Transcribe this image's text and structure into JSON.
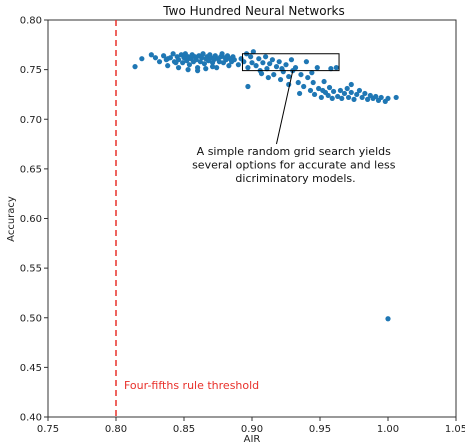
{
  "chart_data": {
    "type": "scatter",
    "title": "Two Hundred Neural Networks",
    "xlabel": "AIR",
    "ylabel": "Accuracy",
    "xlim": [
      0.75,
      1.05
    ],
    "ylim": [
      0.4,
      0.8
    ],
    "xticks": [
      "0.75",
      "0.80",
      "0.85",
      "0.90",
      "0.95",
      "1.00",
      "1.05"
    ],
    "yticks": [
      "0.40",
      "0.45",
      "0.50",
      "0.55",
      "0.60",
      "0.65",
      "0.70",
      "0.75",
      "0.80"
    ],
    "grid": false,
    "marker_color": "#1f77b4",
    "threshold": {
      "x": 0.8,
      "label": "Four-fifths rule threshold",
      "color": "#e8302a",
      "style": "dashed"
    },
    "annotation": {
      "lines": [
        "A simple random grid search yields",
        "several options for accurate and less",
        "dicriminatory models."
      ],
      "box": {
        "x0": 0.893,
        "x1": 0.964,
        "y0": 0.749,
        "y1": 0.766
      },
      "arrow_to": [
        0.93,
        0.749
      ]
    },
    "points": [
      [
        0.814,
        0.753
      ],
      [
        0.819,
        0.761
      ],
      [
        0.826,
        0.765
      ],
      [
        0.829,
        0.762
      ],
      [
        0.832,
        0.758
      ],
      [
        0.835,
        0.764
      ],
      [
        0.837,
        0.76
      ],
      [
        0.838,
        0.754
      ],
      [
        0.84,
        0.762
      ],
      [
        0.842,
        0.766
      ],
      [
        0.843,
        0.758
      ],
      [
        0.845,
        0.763
      ],
      [
        0.846,
        0.76
      ],
      [
        0.848,
        0.765
      ],
      [
        0.849,
        0.757
      ],
      [
        0.85,
        0.762
      ],
      [
        0.851,
        0.766
      ],
      [
        0.852,
        0.759
      ],
      [
        0.853,
        0.763
      ],
      [
        0.854,
        0.755
      ],
      [
        0.855,
        0.761
      ],
      [
        0.856,
        0.765
      ],
      [
        0.857,
        0.758
      ],
      [
        0.858,
        0.763
      ],
      [
        0.859,
        0.76
      ],
      [
        0.86,
        0.752
      ],
      [
        0.861,
        0.764
      ],
      [
        0.862,
        0.758
      ],
      [
        0.863,
        0.762
      ],
      [
        0.864,
        0.766
      ],
      [
        0.865,
        0.756
      ],
      [
        0.866,
        0.761
      ],
      [
        0.867,
        0.763
      ],
      [
        0.868,
        0.759
      ],
      [
        0.869,
        0.765
      ],
      [
        0.87,
        0.762
      ],
      [
        0.871,
        0.757
      ],
      [
        0.872,
        0.76
      ],
      [
        0.873,
        0.764
      ],
      [
        0.874,
        0.752
      ],
      [
        0.875,
        0.761
      ],
      [
        0.876,
        0.758
      ],
      [
        0.877,
        0.763
      ],
      [
        0.878,
        0.766
      ],
      [
        0.879,
        0.757
      ],
      [
        0.88,
        0.762
      ],
      [
        0.881,
        0.76
      ],
      [
        0.882,
        0.764
      ],
      [
        0.883,
        0.754
      ],
      [
        0.884,
        0.761
      ],
      [
        0.885,
        0.758
      ],
      [
        0.886,
        0.763
      ],
      [
        0.887,
        0.76
      ],
      [
        0.846,
        0.752
      ],
      [
        0.853,
        0.75
      ],
      [
        0.86,
        0.749
      ],
      [
        0.866,
        0.751
      ],
      [
        0.871,
        0.753
      ],
      [
        0.838,
        0.761
      ],
      [
        0.844,
        0.757
      ],
      [
        0.89,
        0.755
      ],
      [
        0.892,
        0.761
      ],
      [
        0.894,
        0.758
      ],
      [
        0.896,
        0.766
      ],
      [
        0.897,
        0.752
      ],
      [
        0.899,
        0.763
      ],
      [
        0.9,
        0.757
      ],
      [
        0.901,
        0.768
      ],
      [
        0.903,
        0.754
      ],
      [
        0.905,
        0.761
      ],
      [
        0.906,
        0.749
      ],
      [
        0.908,
        0.757
      ],
      [
        0.91,
        0.763
      ],
      [
        0.911,
        0.751
      ],
      [
        0.913,
        0.756
      ],
      [
        0.915,
        0.76
      ],
      [
        0.916,
        0.745
      ],
      [
        0.918,
        0.753
      ],
      [
        0.92,
        0.758
      ],
      [
        0.921,
        0.74
      ],
      [
        0.923,
        0.748
      ],
      [
        0.925,
        0.755
      ],
      [
        0.927,
        0.743
      ],
      [
        0.929,
        0.76
      ],
      [
        0.93,
        0.749
      ],
      [
        0.932,
        0.752
      ],
      [
        0.934,
        0.737
      ],
      [
        0.936,
        0.745
      ],
      [
        0.938,
        0.733
      ],
      [
        0.94,
        0.758
      ],
      [
        0.941,
        0.742
      ],
      [
        0.943,
        0.729
      ],
      [
        0.945,
        0.737
      ],
      [
        0.946,
        0.725
      ],
      [
        0.948,
        0.752
      ],
      [
        0.949,
        0.731
      ],
      [
        0.951,
        0.722
      ],
      [
        0.953,
        0.738
      ],
      [
        0.954,
        0.727
      ],
      [
        0.956,
        0.724
      ],
      [
        0.957,
        0.732
      ],
      [
        0.959,
        0.721
      ],
      [
        0.96,
        0.728
      ],
      [
        0.962,
        0.752
      ],
      [
        0.963,
        0.723
      ],
      [
        0.965,
        0.729
      ],
      [
        0.966,
        0.721
      ],
      [
        0.968,
        0.726
      ],
      [
        0.97,
        0.731
      ],
      [
        0.971,
        0.722
      ],
      [
        0.973,
        0.727
      ],
      [
        0.975,
        0.72
      ],
      [
        0.977,
        0.725
      ],
      [
        0.979,
        0.729
      ],
      [
        0.981,
        0.722
      ],
      [
        0.983,
        0.726
      ],
      [
        0.985,
        0.72
      ],
      [
        0.987,
        0.724
      ],
      [
        0.989,
        0.721
      ],
      [
        0.991,
        0.723
      ],
      [
        0.993,
        0.719
      ],
      [
        0.995,
        0.722
      ],
      [
        0.998,
        0.718
      ],
      [
        1.0,
        0.721
      ],
      [
        1.006,
        0.722
      ],
      [
        0.897,
        0.733
      ],
      [
        0.912,
        0.742
      ],
      [
        0.927,
        0.735
      ],
      [
        0.944,
        0.747
      ],
      [
        0.958,
        0.751
      ],
      [
        0.973,
        0.735
      ],
      [
        0.907,
        0.746
      ],
      [
        0.922,
        0.751
      ],
      [
        0.935,
        0.726
      ],
      [
        0.952,
        0.729
      ],
      [
        1.0,
        0.499
      ]
    ]
  }
}
